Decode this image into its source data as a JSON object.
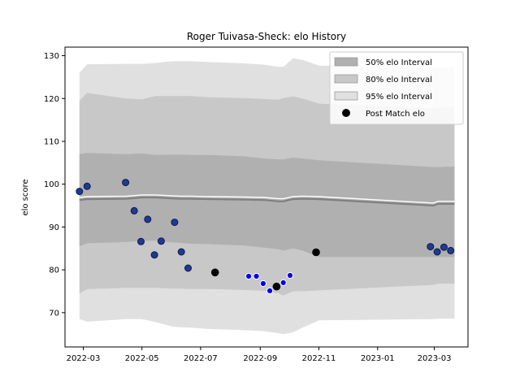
{
  "chart_data": {
    "type": "area",
    "title": "Roger Tuivasa-Sheck: elo History",
    "xlabel": "",
    "ylabel": "elo score",
    "xlim": [
      "2022-02-10",
      "2023-04-05"
    ],
    "ylim": [
      62,
      132
    ],
    "x_ticks": [
      "2022-03",
      "2022-05",
      "2022-07",
      "2022-09",
      "2022-11",
      "2023-01",
      "2023-03"
    ],
    "y_ticks": [
      70,
      80,
      90,
      100,
      110,
      120,
      130
    ],
    "grid": false,
    "legend_position": "top-right",
    "legend": [
      {
        "label": "50% elo Interval",
        "kind": "patch",
        "color": "#b0b0b0"
      },
      {
        "label": "80% elo Interval",
        "kind": "patch",
        "color": "#c8c8c8"
      },
      {
        "label": "95% elo Interval",
        "kind": "patch",
        "color": "#e0e0e0"
      },
      {
        "label": "Post Match elo",
        "kind": "marker",
        "color": "#000000"
      }
    ],
    "series_band": {
      "dates": [
        "2022-02-25",
        "2022-03-05",
        "2022-04-15",
        "2022-05-01",
        "2022-05-15",
        "2022-06-01",
        "2022-06-10",
        "2022-06-20",
        "2022-07-10",
        "2022-08-15",
        "2022-09-05",
        "2022-09-20",
        "2022-09-25",
        "2022-10-05",
        "2022-10-15",
        "2022-11-01",
        "2023-02-28",
        "2023-03-05",
        "2023-03-15",
        "2023-03-22"
      ],
      "mean": [
        96.3,
        96.5,
        96.6,
        96.9,
        96.9,
        96.7,
        96.6,
        96.6,
        96.5,
        96.4,
        96.3,
        96.0,
        96.0,
        96.5,
        96.6,
        96.5,
        95.0,
        95.4,
        95.4,
        95.4
      ],
      "lower50": [
        85.5,
        86.2,
        86.5,
        86.8,
        86.8,
        86.4,
        86.3,
        86.1,
        86.0,
        85.7,
        85.2,
        84.8,
        84.5,
        85.0,
        84.5,
        83.0,
        83.0,
        83.0,
        83.0,
        83.0
      ],
      "upper50": [
        107.0,
        107.3,
        107.0,
        107.2,
        106.8,
        106.9,
        106.9,
        106.8,
        106.8,
        106.5,
        106.0,
        105.8,
        105.8,
        106.2,
        106.0,
        105.6,
        104.0,
        104.0,
        104.1,
        104.1
      ],
      "lower80": [
        74.5,
        75.5,
        75.8,
        75.8,
        75.8,
        75.6,
        75.6,
        75.5,
        75.5,
        75.3,
        75.1,
        74.5,
        74.0,
        75.0,
        75.0,
        75.2,
        76.5,
        76.8,
        76.8,
        76.8
      ],
      "upper80": [
        119.5,
        121.3,
        120.0,
        119.8,
        120.6,
        120.6,
        120.6,
        120.6,
        120.3,
        120.1,
        119.9,
        119.7,
        120.1,
        120.5,
        120.0,
        118.8,
        117.7,
        117.9,
        118.0,
        118.0
      ],
      "lower95": [
        68.5,
        67.9,
        68.5,
        68.5,
        67.8,
        66.8,
        66.6,
        66.5,
        66.2,
        65.9,
        65.7,
        65.2,
        65.0,
        65.4,
        66.5,
        68.2,
        68.5,
        68.6,
        68.6,
        68.6
      ],
      "upper95": [
        126.0,
        128.0,
        128.1,
        128.1,
        128.3,
        128.7,
        128.7,
        128.7,
        128.5,
        128.2,
        127.9,
        127.4,
        127.4,
        129.4,
        129.0,
        127.7,
        127.3,
        127.3,
        127.3,
        127.3
      ]
    },
    "post_match_elo": [
      {
        "date": "2022-02-25",
        "elo": 98.3
      },
      {
        "date": "2022-03-05",
        "elo": 99.5
      },
      {
        "date": "2022-04-14",
        "elo": 100.4
      },
      {
        "date": "2022-04-23",
        "elo": 93.8
      },
      {
        "date": "2022-04-30",
        "elo": 86.6
      },
      {
        "date": "2022-05-07",
        "elo": 91.8
      },
      {
        "date": "2022-05-14",
        "elo": 83.5
      },
      {
        "date": "2022-05-21",
        "elo": 86.7
      },
      {
        "date": "2022-06-04",
        "elo": 91.1
      },
      {
        "date": "2022-06-11",
        "elo": 84.2
      },
      {
        "date": "2022-06-18",
        "elo": 80.4
      },
      {
        "date": "2022-07-16",
        "elo": 79.4
      },
      {
        "date": "2022-08-20",
        "elo": 78.5
      },
      {
        "date": "2022-08-28",
        "elo": 78.5
      },
      {
        "date": "2022-09-04",
        "elo": 76.8
      },
      {
        "date": "2022-09-11",
        "elo": 75.1
      },
      {
        "date": "2022-09-18",
        "elo": 76.1
      },
      {
        "date": "2022-09-25",
        "elo": 77.0
      },
      {
        "date": "2022-10-02",
        "elo": 78.7
      },
      {
        "date": "2022-10-29",
        "elo": 84.1
      },
      {
        "date": "2023-02-25",
        "elo": 85.4
      },
      {
        "date": "2023-03-04",
        "elo": 84.2
      },
      {
        "date": "2023-03-11",
        "elo": 85.3
      },
      {
        "date": "2023-03-18",
        "elo": 84.5
      }
    ]
  },
  "colors": {
    "band50": "#b0b0b0",
    "band80": "#c8c8c8",
    "band95": "#e0e0e0",
    "mean_line": "#808080",
    "mean_highlight": "#ffffff",
    "point_fill": "#1f3a93",
    "point_edge": "#0d1a4a",
    "point_fill_bright": "#0000ee",
    "point_black": "#000000"
  }
}
